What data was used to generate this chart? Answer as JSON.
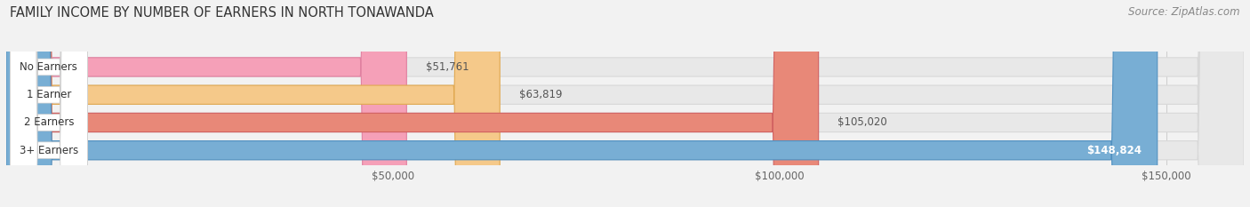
{
  "title": "FAMILY INCOME BY NUMBER OF EARNERS IN NORTH TONAWANDA",
  "source": "Source: ZipAtlas.com",
  "categories": [
    "No Earners",
    "1 Earner",
    "2 Earners",
    "3+ Earners"
  ],
  "values": [
    51761,
    63819,
    105020,
    148824
  ],
  "bar_colors": [
    "#f5a0b8",
    "#f5c98a",
    "#e88878",
    "#78aed4"
  ],
  "bar_edge_colors": [
    "#e080a0",
    "#e0a850",
    "#d06060",
    "#5090c0"
  ],
  "label_bg_colors": [
    "#ffffff",
    "#ffffff",
    "#ffffff",
    "#ffffff"
  ],
  "value_labels": [
    "$51,761",
    "$63,819",
    "$105,020",
    "$148,824"
  ],
  "value_label_inside": [
    false,
    false,
    false,
    true
  ],
  "xlim_max": 160000,
  "xticks": [
    50000,
    100000,
    150000
  ],
  "xtick_labels": [
    "$50,000",
    "$100,000",
    "$150,000"
  ],
  "background_color": "#f2f2f2",
  "bar_bg_color": "#e8e8e8",
  "bar_bg_edge_color": "#d8d8d8",
  "title_fontsize": 10.5,
  "source_fontsize": 8.5,
  "label_fontsize": 8.5,
  "tick_fontsize": 8.5,
  "bar_height": 0.68,
  "fig_width": 14.06,
  "fig_height": 2.33,
  "dpi": 100
}
